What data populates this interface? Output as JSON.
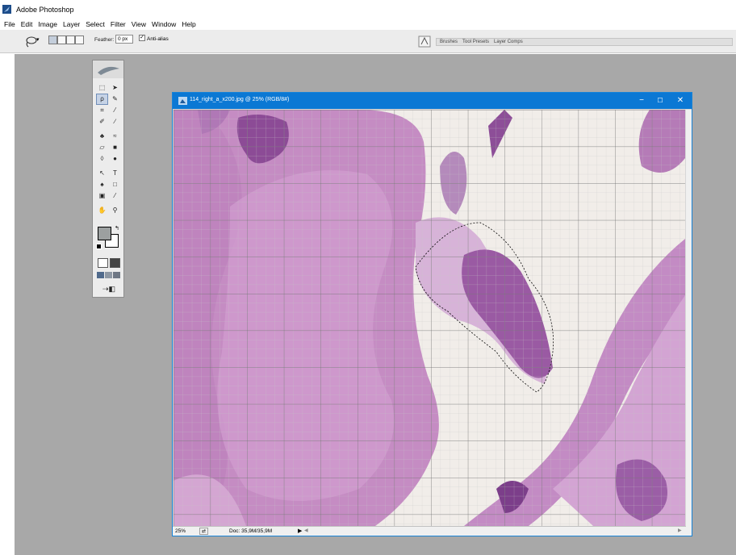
{
  "app": {
    "title": "Adobe Photoshop"
  },
  "menu": [
    "File",
    "Edit",
    "Image",
    "Layer",
    "Select",
    "Filter",
    "View",
    "Window",
    "Help"
  ],
  "options_bar": {
    "tool_icon": "lasso-icon",
    "feather_label": "Feather:",
    "feather_value": "0 px",
    "antialias_label": "Anti-alias",
    "antialias_checked": true,
    "palette_well_tabs": [
      "Brushes",
      "Tool Presets",
      "Layer Comps"
    ]
  },
  "toolbox": {
    "tools": [
      {
        "name": "marquee-tool",
        "glyph": "⬚"
      },
      {
        "name": "move-tool",
        "glyph": "➤"
      },
      {
        "name": "lasso-tool",
        "glyph": "ρ",
        "active": true
      },
      {
        "name": "magic-wand-tool",
        "glyph": "✎"
      },
      {
        "name": "crop-tool",
        "glyph": "⌗"
      },
      {
        "name": "slice-tool",
        "glyph": "⁄"
      },
      {
        "name": "healing-brush-tool",
        "glyph": "✐"
      },
      {
        "name": "brush-tool",
        "glyph": "∕"
      },
      {
        "name": "clone-stamp-tool",
        "glyph": "♣"
      },
      {
        "name": "history-brush-tool",
        "glyph": "≈"
      },
      {
        "name": "eraser-tool",
        "glyph": "▱"
      },
      {
        "name": "gradient-tool",
        "glyph": "■"
      },
      {
        "name": "blur-tool",
        "glyph": "◊"
      },
      {
        "name": "dodge-tool",
        "glyph": "●"
      },
      {
        "name": "path-selection-tool",
        "glyph": "↖"
      },
      {
        "name": "type-tool",
        "glyph": "T"
      },
      {
        "name": "pen-tool",
        "glyph": "♠"
      },
      {
        "name": "shape-tool",
        "glyph": "□"
      },
      {
        "name": "notes-tool",
        "glyph": "▣"
      },
      {
        "name": "eyedropper-tool",
        "glyph": "⁄"
      },
      {
        "name": "hand-tool",
        "glyph": "✋"
      },
      {
        "name": "zoom-tool",
        "glyph": "⚲"
      }
    ],
    "mode_buttons": [
      "standard-mode",
      "quick-mask-mode"
    ],
    "screen_buttons": [
      "standard-screen",
      "full-screen-menu",
      "full-screen"
    ],
    "jump_button": "jump-to-imageready"
  },
  "document": {
    "title": "114_right_a_x200.jpg @ 25% (RGB/8#)",
    "zoom": "25%",
    "doc_info": "Doc: 35,9M/35,9M"
  },
  "colors": {
    "workspace": "#a8a8a8",
    "doc_titlebar": "#0b78d4",
    "tissue": "#c088c0",
    "tissue_dark": "#8a4a94",
    "background_slide": "#f1ede9",
    "grid": "#6b6b6b"
  }
}
